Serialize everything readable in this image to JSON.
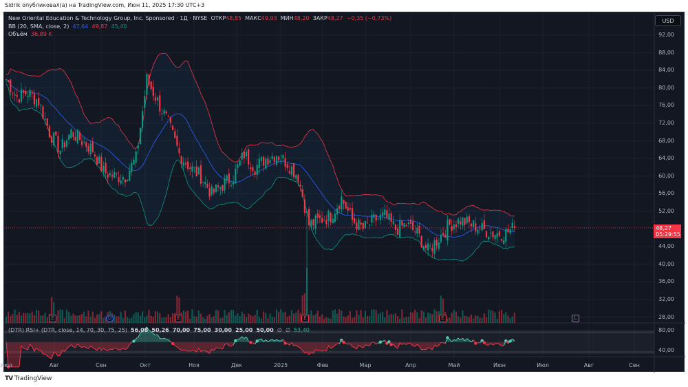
{
  "published": "Sidrik опубликовал(а) на TradingView.com, Июн 11, 2025 17:30 UTC+3",
  "legend": {
    "symbol": "New Oriental Education & Technology Group, Inc. Sponsored · 1Д · NYSE",
    "open_label": "ОТКР",
    "open": "48,85",
    "high_label": "МАКС",
    "high": "49,03",
    "low_label": "МИН",
    "low": "48,20",
    "close_label": "ЗАКР",
    "close": "48,27",
    "change": "−0,35 (−0,73%)",
    "bb_label": "BB (20, SMA, close, 2)",
    "bb_basis": "47,64",
    "bb_upper": "49,87",
    "bb_lower": "45,40",
    "vol_label": "Объём",
    "vol": "36,89 K"
  },
  "rsi": {
    "label": "(D7R) RSI+ (D7R, close, 14, 70, 30, 75, 25)",
    "values": [
      "56,08",
      "50,26",
      "70,00",
      "75,00",
      "30,00",
      "25,00",
      "50,00",
      "∅",
      "∅"
    ],
    "last": "53,40"
  },
  "currency": "USD",
  "price_axis": [
    "92,00",
    "88,00",
    "84,00",
    "80,00",
    "76,00",
    "72,00",
    "68,00",
    "64,00",
    "60,00",
    "56,00",
    "52,00",
    "44,00",
    "40,00",
    "36,00",
    "32,00",
    "28,00"
  ],
  "rsi_axis": [
    "80,00",
    "40,00"
  ],
  "last_price": "48,27",
  "countdown": "05:29:55",
  "time_axis": [
    "Июл",
    "Авг",
    "Сен",
    "Окт",
    "Ноя",
    "Дек",
    "2025",
    "Фев",
    "Мар",
    "Апр",
    "Май",
    "Июн",
    "Июл",
    "Авг",
    "Сен"
  ],
  "events": [
    {
      "type": "E"
    },
    {
      "type": "D"
    },
    {
      "type": "E"
    },
    {
      "type": "E"
    },
    {
      "type": "E"
    },
    {
      "type": "L"
    }
  ],
  "colors": {
    "up": "#089981",
    "down": "#f23645",
    "bb_basis": "#2962ff",
    "bb_upper": "#f23645",
    "bb_lower": "#089981",
    "background": "#131722"
  },
  "chart_data": {
    "type": "candlestick",
    "note_units": "USD",
    "weekly_closes": [
      82,
      78,
      79,
      77,
      70,
      66,
      70,
      68,
      66,
      61,
      60,
      60,
      64,
      82,
      77,
      72,
      65,
      62,
      60,
      56,
      58,
      60,
      65,
      62,
      64,
      65,
      63,
      60,
      49,
      50,
      51,
      55,
      50,
      48,
      50,
      51,
      48,
      49,
      47,
      43,
      46,
      49,
      50,
      49,
      48,
      47,
      47,
      48.27
    ],
    "ylim": [
      26,
      94
    ]
  },
  "footer": "TradingView"
}
